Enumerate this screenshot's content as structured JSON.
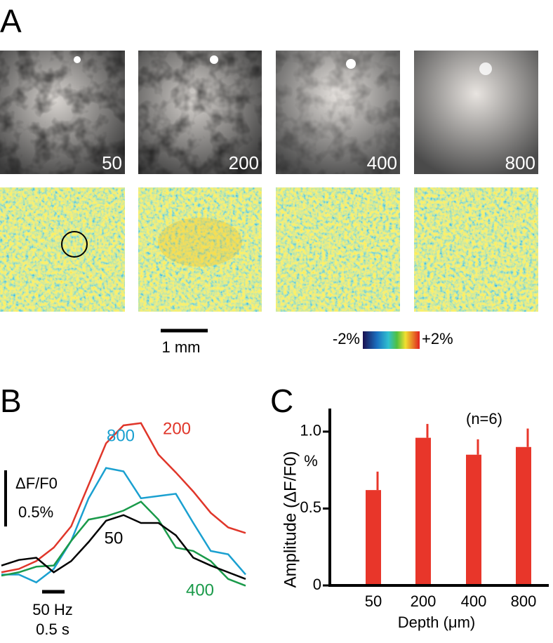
{
  "panel_a": {
    "label": "A",
    "depth_labels": [
      "50",
      "200",
      "400",
      "800"
    ],
    "scale_bar_label": "1 mm",
    "colorbar": {
      "min_label": "-2%",
      "max_label": "+2%"
    }
  },
  "chart_data": [
    {
      "type": "line",
      "label": "B",
      "x": [
        0,
        0.4,
        0.8,
        1.2,
        1.6,
        2.0,
        2.4,
        2.8,
        3.2,
        3.6,
        4.0,
        4.4,
        4.8,
        5.2,
        5.6
      ],
      "xlim": [
        0,
        5.6
      ],
      "ylim": [
        -0.25,
        1.44
      ],
      "series": [
        {
          "name": "200",
          "color": "#e0362a",
          "values": [
            0.03,
            0.06,
            0.13,
            0.25,
            0.44,
            0.81,
            1.18,
            1.34,
            1.36,
            1.08,
            0.92,
            0.75,
            0.56,
            0.43,
            0.38
          ]
        },
        {
          "name": "800",
          "color": "#1aa0d0",
          "values": [
            0.01,
            0.01,
            -0.06,
            0.06,
            0.31,
            0.69,
            0.96,
            0.93,
            0.69,
            0.71,
            0.73,
            0.47,
            0.22,
            0.19,
            0.01
          ]
        },
        {
          "name": "400",
          "color": "#1a9a4a",
          "values": [
            0,
            0.03,
            0.08,
            0.09,
            0.31,
            0.5,
            0.53,
            0.58,
            0.66,
            0.5,
            0.25,
            0.22,
            0.13,
            -0.03,
            -0.09
          ]
        },
        {
          "name": "50",
          "color": "#000000",
          "values": [
            0.09,
            0.14,
            0.16,
            0.03,
            0.13,
            0.3,
            0.49,
            0.54,
            0.47,
            0.47,
            0.36,
            0.16,
            0.09,
            0.03,
            -0.03
          ]
        }
      ],
      "scale_bar": {
        "label": "ΔF/F0",
        "value_label": "0.5%"
      },
      "stimulus": {
        "label": "50 Hz",
        "duration_label": "0.5 s"
      }
    },
    {
      "type": "bar",
      "label": "C",
      "categories": [
        "50",
        "200",
        "400",
        "800"
      ],
      "values": [
        0.62,
        0.96,
        0.85,
        0.9
      ],
      "errors": [
        0.12,
        0.09,
        0.1,
        0.12
      ],
      "color": "#e8362a",
      "ylim": [
        0,
        1.15
      ],
      "yticks": [
        0,
        0.5,
        {
          "value": 1,
          "label": "1.0"
        }
      ],
      "y_label": "Amplitude (ΔF/F0)",
      "y_unit": "%",
      "x_label": "Depth (μm)",
      "annotation": "(n=6)"
    }
  ]
}
